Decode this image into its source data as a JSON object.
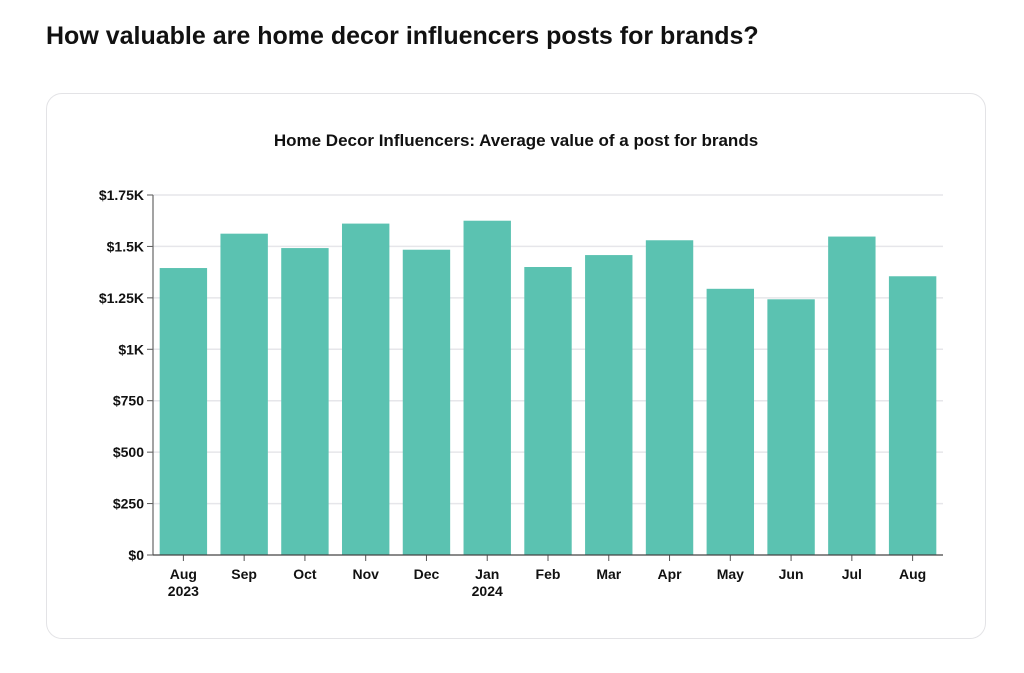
{
  "page": {
    "heading": "How valuable are home decor influencers posts for brands?"
  },
  "chart_data": {
    "type": "bar",
    "title": "Home Decor Influencers: Average value of a post for brands",
    "categories": [
      "Aug 2023",
      "Sep",
      "Oct",
      "Nov",
      "Dec",
      "Jan 2024",
      "Feb",
      "Mar",
      "Apr",
      "May",
      "Jun",
      "Jul",
      "Aug"
    ],
    "category_labels": [
      [
        "Aug",
        "2023"
      ],
      [
        "Sep"
      ],
      [
        "Oct"
      ],
      [
        "Nov"
      ],
      [
        "Dec"
      ],
      [
        "Jan",
        "2024"
      ],
      [
        "Feb"
      ],
      [
        "Mar"
      ],
      [
        "Apr"
      ],
      [
        "May"
      ],
      [
        "Jun"
      ],
      [
        "Jul"
      ],
      [
        "Aug"
      ]
    ],
    "values": [
      1395,
      1562,
      1492,
      1611,
      1484,
      1625,
      1400,
      1458,
      1530,
      1294,
      1243,
      1548,
      1355
    ],
    "ylim": [
      0,
      1750
    ],
    "yticks": [
      0,
      250,
      500,
      750,
      1000,
      1250,
      1500,
      1750
    ],
    "ytick_labels": [
      "$0",
      "$250",
      "$500",
      "$750",
      "$1K",
      "$1.25K",
      "$1.5K",
      "$1.75K"
    ],
    "xlabel": "",
    "ylabel": "",
    "grid": true,
    "bar_color": "#5bc2b1"
  }
}
